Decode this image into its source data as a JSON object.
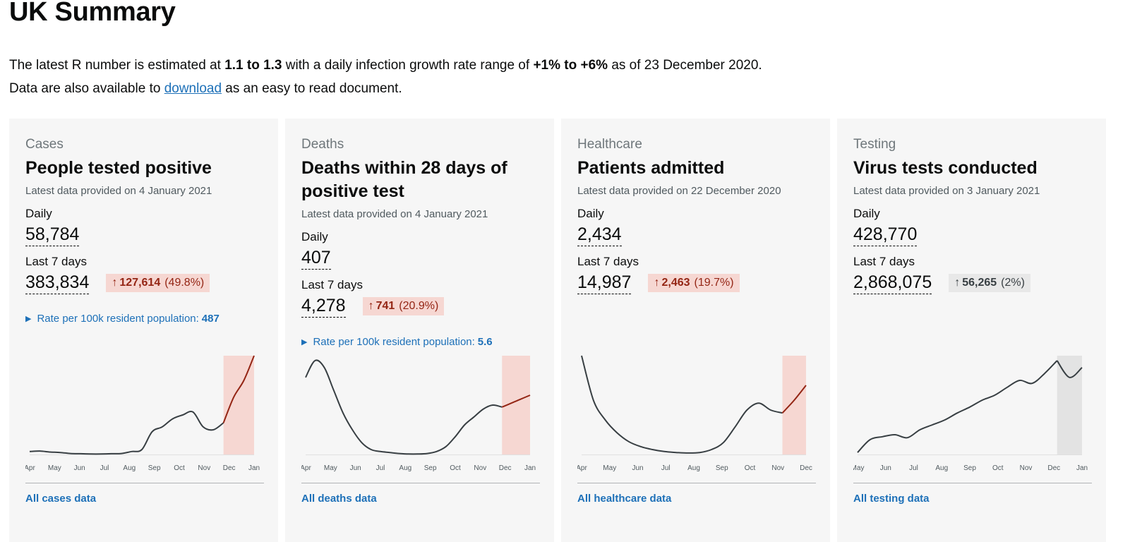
{
  "page": {
    "title": "UK Summary",
    "intro": {
      "line1_prefix": "The latest R number is estimated at ",
      "r_range": "1.1 to 1.3",
      "line1_middle": " with a daily infection growth rate range of ",
      "growth_range": "+1% to +6%",
      "line1_suffix": " as of 23 December 2020.",
      "line2_prefix": "Data are also available to ",
      "download_link": "download",
      "line2_suffix": " as an easy to read document."
    }
  },
  "cards": [
    {
      "caption": "Cases",
      "title": "People tested positive",
      "latest": "Latest data provided on 4 January 2021",
      "daily_label": "Daily",
      "daily_value": "58,784",
      "week_label": "Last 7 days",
      "week_value": "383,834",
      "change_arrow": "↑",
      "change_value": "127,614",
      "change_pct": "(49.8%)",
      "change_direction": "up",
      "rate_label": "Rate per 100k resident population:",
      "rate_value": "487",
      "footer_link": "All cases data"
    },
    {
      "caption": "Deaths",
      "title": "Deaths within 28 days of positive test",
      "latest": "Latest data provided on 4 January 2021",
      "daily_label": "Daily",
      "daily_value": "407",
      "week_label": "Last 7 days",
      "week_value": "4,278",
      "change_arrow": "↑",
      "change_value": "741",
      "change_pct": "(20.9%)",
      "change_direction": "up",
      "rate_label": "Rate per 100k resident population:",
      "rate_value": "5.6",
      "footer_link": "All deaths data"
    },
    {
      "caption": "Healthcare",
      "title": "Patients admitted",
      "latest": "Latest data provided on 22 December 2020",
      "daily_label": "Daily",
      "daily_value": "2,434",
      "week_label": "Last 7 days",
      "week_value": "14,987",
      "change_arrow": "↑",
      "change_value": "2,463",
      "change_pct": "(19.7%)",
      "change_direction": "up",
      "footer_link": "All healthcare data"
    },
    {
      "caption": "Testing",
      "title": "Virus tests conducted",
      "latest": "Latest data provided on 3 January 2021",
      "daily_label": "Daily",
      "daily_value": "428,770",
      "week_label": "Last 7 days",
      "week_value": "2,868,075",
      "change_arrow": "↑",
      "change_value": "56,265",
      "change_pct": "(2%)",
      "change_direction": "neutral",
      "footer_link": "All testing data"
    }
  ],
  "chart_data": [
    {
      "type": "line",
      "x": [
        "Apr",
        "Apr",
        "May",
        "May",
        "Jun",
        "Jun",
        "Jul",
        "Jul",
        "Aug",
        "Aug",
        "Sep",
        "Sep",
        "Oct",
        "Oct",
        "Oct",
        "Nov",
        "Nov",
        "Nov",
        "Dec",
        "Dec",
        "Dec",
        "Dec",
        "Jan"
      ],
      "values": [
        0.03,
        0.035,
        0.025,
        0.02,
        0.01,
        0.008,
        0.005,
        0.005,
        0.008,
        0.01,
        0.03,
        0.05,
        0.23,
        0.28,
        0.36,
        0.4,
        0.43,
        0.28,
        0.25,
        0.32,
        0.58,
        0.75,
        1.0
      ],
      "highlight_from": 19,
      "xticks": [
        "Apr",
        "May",
        "Jun",
        "Jul",
        "Aug",
        "Sep",
        "Oct",
        "Nov",
        "Dec",
        "Jan"
      ],
      "line_color": "#383f43",
      "highlight_color": "#942514",
      "highlight_fill": "#f6d7d2"
    },
    {
      "type": "line",
      "x": [
        "Apr",
        "Apr",
        "Apr",
        "May",
        "May",
        "May",
        "Jun",
        "Jun",
        "Jul",
        "Jul",
        "Aug",
        "Aug",
        "Sep",
        "Sep",
        "Oct",
        "Oct",
        "Oct",
        "Nov",
        "Nov",
        "Nov",
        "Dec",
        "Dec",
        "Dec",
        "Dec",
        "Jan"
      ],
      "values": [
        0.78,
        0.95,
        0.88,
        0.65,
        0.42,
        0.25,
        0.12,
        0.05,
        0.03,
        0.02,
        0.01,
        0.005,
        0.005,
        0.01,
        0.03,
        0.08,
        0.18,
        0.3,
        0.38,
        0.46,
        0.5,
        0.48,
        0.52,
        0.56,
        0.6
      ],
      "highlight_from": 21,
      "xticks": [
        "Apr",
        "May",
        "Jun",
        "Jul",
        "Aug",
        "Sep",
        "Oct",
        "Nov",
        "Dec",
        "Jan"
      ],
      "line_color": "#383f43",
      "highlight_color": "#942514",
      "highlight_fill": "#f6d7d2"
    },
    {
      "type": "line",
      "x": [
        "Apr",
        "Apr",
        "May",
        "May",
        "Jun",
        "Jun",
        "Jul",
        "Jul",
        "Aug",
        "Aug",
        "Sep",
        "Sep",
        "Oct",
        "Oct",
        "Nov",
        "Nov",
        "Nov",
        "Dec",
        "Dec",
        "Dec"
      ],
      "values": [
        1.0,
        0.55,
        0.35,
        0.22,
        0.13,
        0.08,
        0.05,
        0.03,
        0.02,
        0.015,
        0.02,
        0.05,
        0.12,
        0.28,
        0.45,
        0.52,
        0.45,
        0.42,
        0.55,
        0.7
      ],
      "highlight_from": 17,
      "xticks": [
        "Apr",
        "May",
        "Jun",
        "Jul",
        "Aug",
        "Sep",
        "Oct",
        "Nov",
        "Dec"
      ],
      "line_color": "#383f43",
      "highlight_color": "#942514",
      "highlight_fill": "#f6d7d2"
    },
    {
      "type": "line",
      "x": [
        "May",
        "May",
        "Jun",
        "Jun",
        "Jul",
        "Jul",
        "Aug",
        "Aug",
        "Sep",
        "Sep",
        "Oct",
        "Oct",
        "Nov",
        "Nov",
        "Nov",
        "Dec",
        "Dec",
        "Dec",
        "Jan"
      ],
      "values": [
        0.02,
        0.15,
        0.18,
        0.2,
        0.17,
        0.25,
        0.3,
        0.35,
        0.42,
        0.48,
        0.55,
        0.6,
        0.68,
        0.75,
        0.72,
        0.82,
        0.95,
        0.78,
        0.88
      ],
      "highlight_from": 16,
      "xticks": [
        "May",
        "Jun",
        "Jul",
        "Aug",
        "Sep",
        "Oct",
        "Nov",
        "Dec",
        "Jan"
      ],
      "line_color": "#383f43",
      "highlight_color": "#383f43",
      "highlight_fill": "#e3e3e3"
    }
  ]
}
